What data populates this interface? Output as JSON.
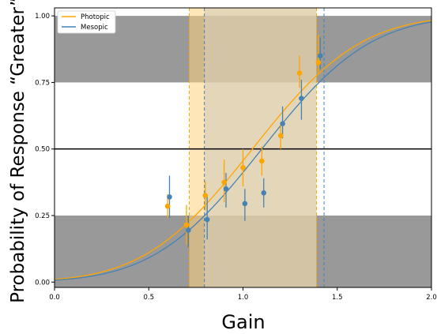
{
  "colors": {
    "photopic": "#ffa500",
    "mesopic": "#4682b4",
    "band": "#808080",
    "photopic_shade": "#ffd27f",
    "overlap_shade": "#d2cbb8",
    "reference_line": "#000000"
  },
  "chart_data": {
    "type": "scatter",
    "title": "",
    "xlabel": "Gain",
    "ylabel": "Probability of Response “Greater”",
    "xlim": [
      0.0,
      2.0
    ],
    "ylim": [
      -0.02,
      1.03
    ],
    "xticks": [
      "0.0",
      "0.5",
      "1.0",
      "1.5",
      "2.0"
    ],
    "yticks": [
      "0.00",
      "0.25",
      "0.50",
      "0.75",
      "1.00"
    ],
    "grid": false,
    "legend": "top-left",
    "reference_line_y": 0.5,
    "gray_bands": [
      [
        -0.02,
        0.25
      ],
      [
        0.75,
        1.0
      ]
    ],
    "series": [
      {
        "name": "Photopic",
        "color_key": "photopic",
        "fit": {
          "mu": 1.05,
          "sigma": 0.45
        },
        "interval": [
          0.715,
          1.39
        ],
        "points": [
          {
            "x": 0.6,
            "y": 0.285,
            "lo": 0.24,
            "hi": 0.33
          },
          {
            "x": 0.7,
            "y": 0.215,
            "lo": 0.14,
            "hi": 0.29
          },
          {
            "x": 0.8,
            "y": 0.325,
            "lo": 0.27,
            "hi": 0.38
          },
          {
            "x": 0.9,
            "y": 0.375,
            "lo": 0.3,
            "hi": 0.46
          },
          {
            "x": 1.0,
            "y": 0.43,
            "lo": 0.36,
            "hi": 0.5
          },
          {
            "x": 1.1,
            "y": 0.455,
            "lo": 0.4,
            "hi": 0.51
          },
          {
            "x": 1.2,
            "y": 0.55,
            "lo": 0.5,
            "hi": 0.6
          },
          {
            "x": 1.3,
            "y": 0.785,
            "lo": 0.73,
            "hi": 0.85
          },
          {
            "x": 1.4,
            "y": 0.825,
            "lo": 0.78,
            "hi": 0.93
          }
        ]
      },
      {
        "name": "Mesopic",
        "color_key": "mesopic",
        "fit": {
          "mu": 1.1,
          "sigma": 0.45
        },
        "interval": [
          0.795,
          1.43
        ],
        "points": [
          {
            "x": 0.61,
            "y": 0.32,
            "lo": 0.24,
            "hi": 0.4
          },
          {
            "x": 0.71,
            "y": 0.195,
            "lo": 0.13,
            "hi": 0.25
          },
          {
            "x": 0.81,
            "y": 0.235,
            "lo": 0.16,
            "hi": 0.32
          },
          {
            "x": 0.91,
            "y": 0.35,
            "lo": 0.28,
            "hi": 0.41
          },
          {
            "x": 1.01,
            "y": 0.295,
            "lo": 0.23,
            "hi": 0.35
          },
          {
            "x": 1.11,
            "y": 0.335,
            "lo": 0.28,
            "hi": 0.39
          },
          {
            "x": 1.21,
            "y": 0.595,
            "lo": 0.54,
            "hi": 0.66
          },
          {
            "x": 1.31,
            "y": 0.69,
            "lo": 0.61,
            "hi": 0.76
          },
          {
            "x": 1.41,
            "y": 0.85,
            "lo": 0.8,
            "hi": 0.92
          }
        ]
      }
    ]
  }
}
